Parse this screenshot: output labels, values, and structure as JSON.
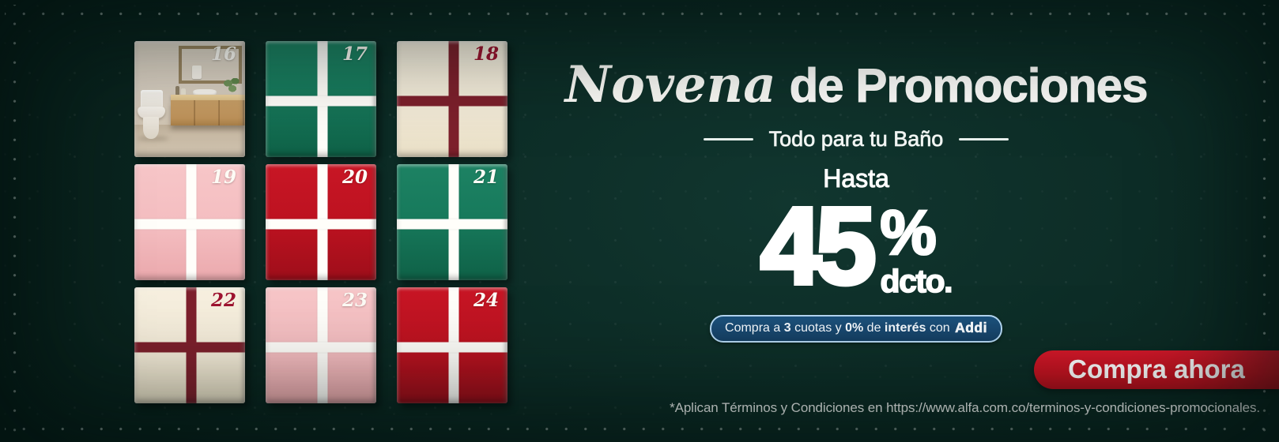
{
  "theme": {
    "background_dark_green": "#0c2b25",
    "gift_green": "#177a5c",
    "gift_cream": "#f4ecd9",
    "gift_pink": "#f4bdc0",
    "gift_red": "#bd1220",
    "ribbon_maroon": "#7d202c",
    "number_dark_red": "#9e1430",
    "cta_red": "#c41220",
    "pill_blue": "#153f63",
    "pill_border_blue": "#b4d7f2"
  },
  "calendar": {
    "boxes": [
      {
        "number": "16",
        "variant": "photo",
        "ribbon": "none",
        "number_color": "light",
        "content": "bathroom-photo"
      },
      {
        "number": "17",
        "variant": "green",
        "ribbon": "white",
        "number_color": "light"
      },
      {
        "number": "18",
        "variant": "cream",
        "ribbon": "maroon",
        "number_color": "dark"
      },
      {
        "number": "19",
        "variant": "pink",
        "ribbon": "white",
        "number_color": "light"
      },
      {
        "number": "20",
        "variant": "red",
        "ribbon": "white",
        "number_color": "light"
      },
      {
        "number": "21",
        "variant": "green",
        "ribbon": "white",
        "number_color": "light"
      },
      {
        "number": "22",
        "variant": "cream",
        "ribbon": "maroon",
        "number_color": "dark"
      },
      {
        "number": "23",
        "variant": "pink",
        "ribbon": "white",
        "number_color": "light"
      },
      {
        "number": "24",
        "variant": "red",
        "ribbon": "white",
        "number_color": "light"
      }
    ]
  },
  "headline": {
    "script": "Novena",
    "rest": "de Promociones"
  },
  "subtitle": {
    "text": "Todo para tu Baño"
  },
  "promo": {
    "hasta": "Hasta",
    "value": "45",
    "percent": "%",
    "unit": "dcto."
  },
  "addi_pill": {
    "segments": [
      {
        "text": "Compra a ",
        "bold": false
      },
      {
        "text": "3",
        "bold": true
      },
      {
        "text": " cuotas y ",
        "bold": false
      },
      {
        "text": "0%",
        "bold": true
      },
      {
        "text": " de ",
        "bold": false
      },
      {
        "text": "interés",
        "bold": true
      },
      {
        "text": " con ",
        "bold": false
      },
      {
        "text": "Addi",
        "bold": true,
        "logo": true
      }
    ]
  },
  "cta": {
    "label": "Compra ahora"
  },
  "terms": {
    "text": "*Aplican Términos y Condiciones en https://www.alfa.com.co/terminos-y-condiciones-promocionales."
  }
}
